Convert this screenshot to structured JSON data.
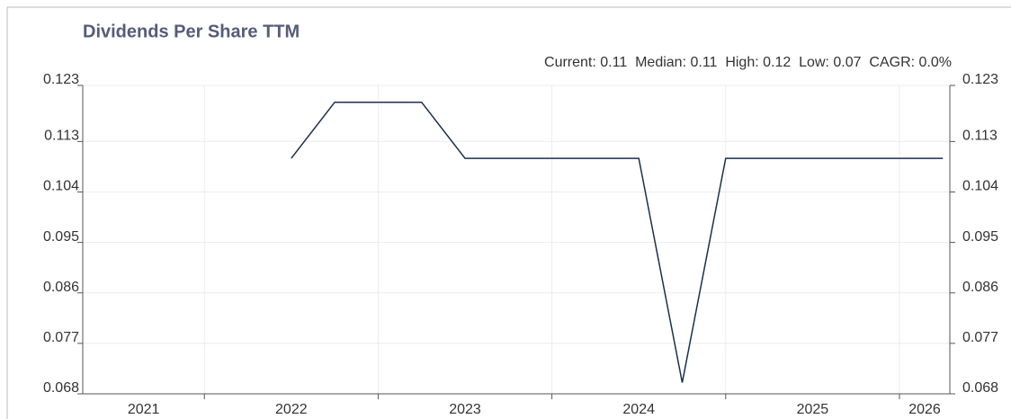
{
  "chart_data": {
    "type": "line",
    "title": "Dividends Per Share TTM",
    "subtitle": "Current: 0.11  Median: 0.11  High: 0.12  Low: 0.07  CAGR: 0.0%",
    "x": [
      2022.5,
      2022.75,
      2023.25,
      2023.5,
      2024.5,
      2024.75,
      2025.0,
      2026.25
    ],
    "series": [
      {
        "name": "Dividends Per Share TTM",
        "color": "#1c2f4f",
        "values": [
          0.11,
          0.12,
          0.12,
          0.11,
          0.11,
          0.07,
          0.11,
          0.11
        ]
      }
    ],
    "xlim": [
      2021.3,
      2026.29
    ],
    "xticks": [
      2021,
      2022,
      2023,
      2024,
      2025,
      2026
    ],
    "ylim": [
      0.068,
      0.123
    ],
    "yticks": [
      0.068,
      0.077,
      0.086,
      0.095,
      0.104,
      0.113,
      0.123
    ],
    "grid": true
  }
}
